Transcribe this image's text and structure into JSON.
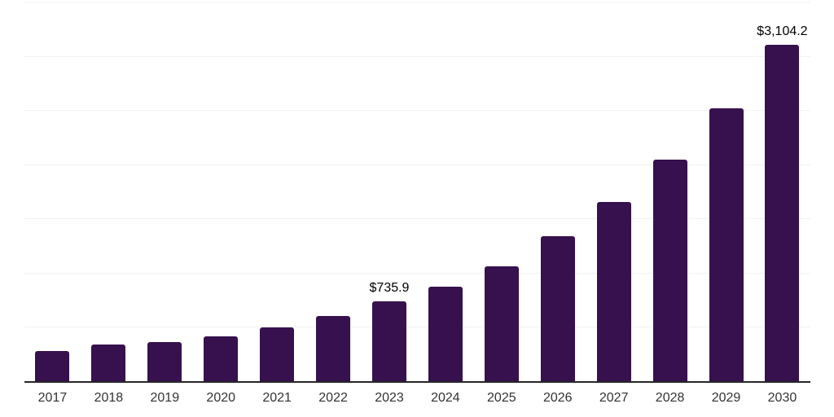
{
  "chart_data": {
    "type": "bar",
    "title": "",
    "xlabel": "",
    "ylabel": "",
    "categories": [
      "2017",
      "2018",
      "2019",
      "2020",
      "2021",
      "2022",
      "2023",
      "2024",
      "2025",
      "2026",
      "2027",
      "2028",
      "2029",
      "2030"
    ],
    "values": [
      280,
      340,
      360,
      415,
      495,
      600,
      735.9,
      870,
      1060,
      1335,
      1650,
      2040,
      2515,
      3104.2
    ],
    "point_labels": [
      "",
      "",
      "",
      "",
      "",
      "",
      "$735.9",
      "",
      "",
      "",
      "",
      "",
      "",
      "$3,104.2"
    ],
    "ylim": [
      0,
      3500
    ],
    "grid_step": 500,
    "grid": true,
    "legend": "none",
    "y_tick_labels_visible": false,
    "colors": {
      "bar": "#36114D",
      "axis_line": "#262626",
      "gridline": "#f2f2f4",
      "tick_label": "#333333",
      "value_label": "#000000",
      "background": "#ffffff"
    }
  }
}
